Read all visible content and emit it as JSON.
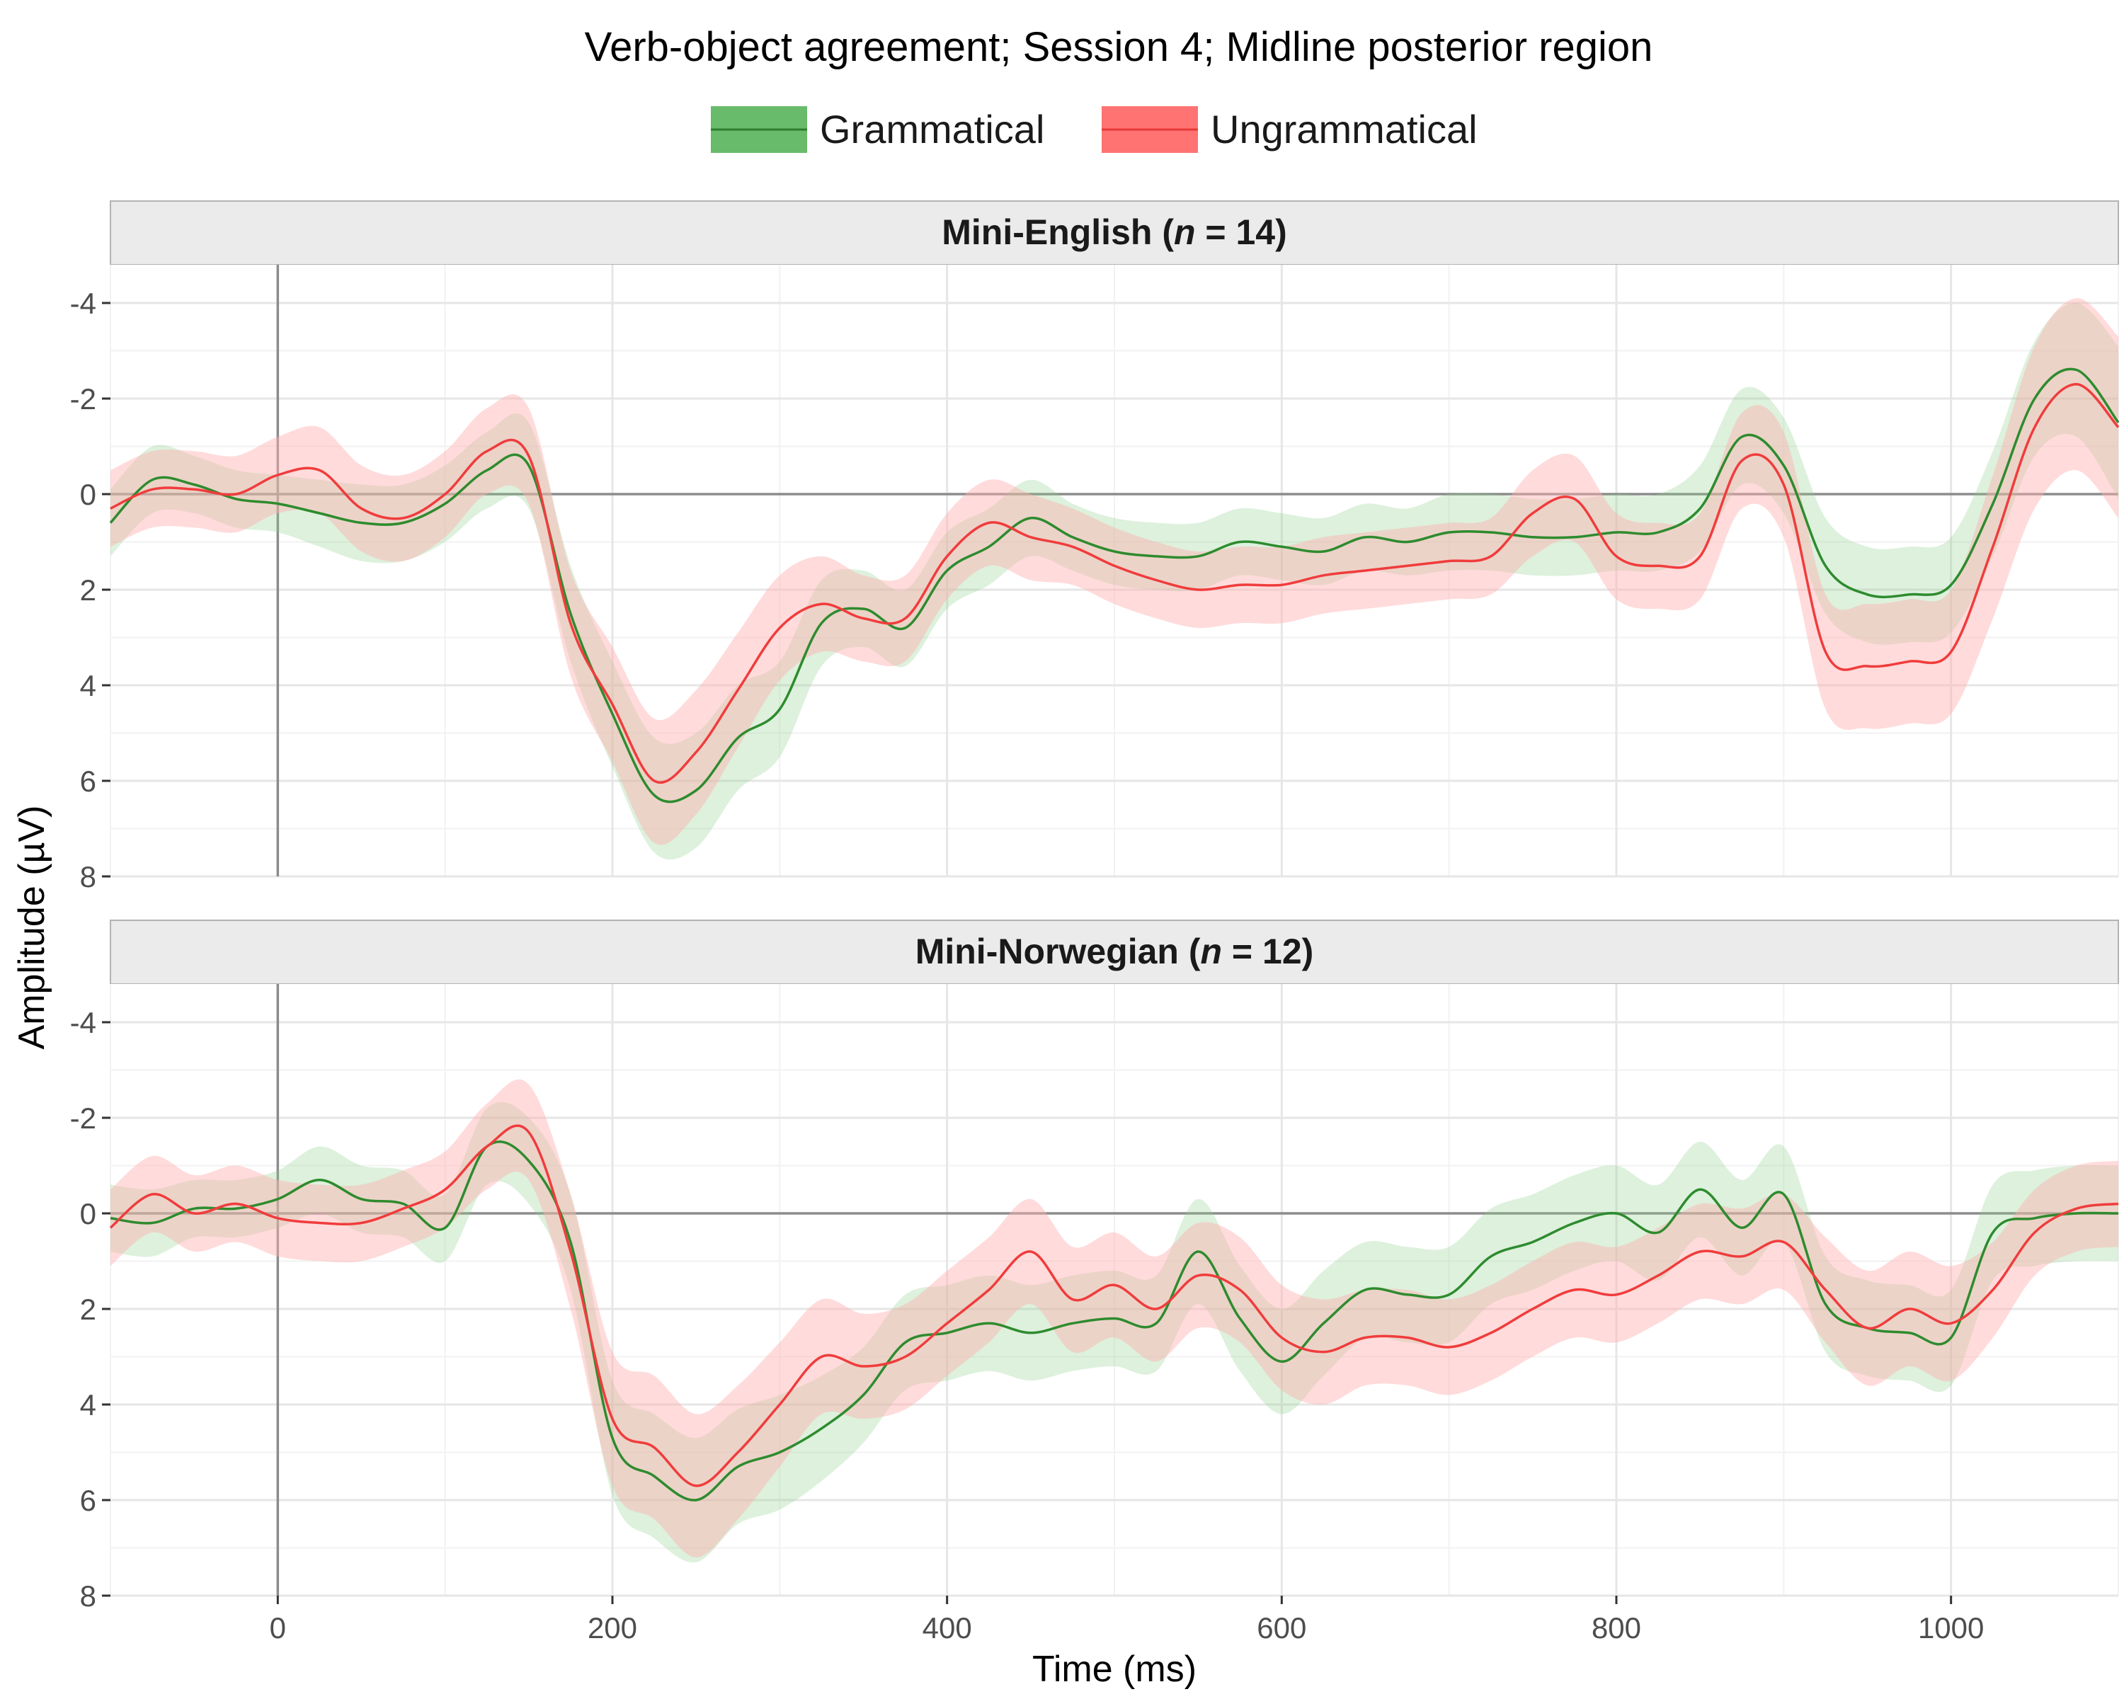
{
  "chart_data": {
    "type": "line",
    "title": "Verb-object agreement; Session 4; Midline posterior region",
    "xlabel": "Time (ms)",
    "ylabel": "Amplitude (µV)",
    "xlim": [
      -100,
      1100
    ],
    "ylim": [
      8,
      -4.8
    ],
    "y_reversed": true,
    "x_ticks": [
      0,
      200,
      400,
      600,
      800,
      1000
    ],
    "x_tick_labels": [
      "0",
      "200",
      "400",
      "600",
      "800",
      "1000"
    ],
    "y_ticks": [
      -4,
      -2,
      0,
      2,
      4,
      6,
      8
    ],
    "y_tick_labels": [
      "-4",
      "-2",
      "0",
      "2",
      "4",
      "6",
      "8"
    ],
    "grid": true,
    "legend": {
      "position": "top",
      "entries": [
        "Grammatical",
        "Ungrammatical"
      ]
    },
    "colors": {
      "Grammatical": "#2e8b2e",
      "Ungrammatical": "#f03c3c",
      "grammatical_band": "#8fd18f",
      "ungrammatical_band": "#ffb0b0"
    },
    "x": [
      -100,
      -75,
      -50,
      -25,
      0,
      25,
      50,
      75,
      100,
      125,
      150,
      175,
      200,
      225,
      250,
      275,
      300,
      325,
      350,
      375,
      400,
      425,
      450,
      475,
      500,
      525,
      550,
      575,
      600,
      625,
      650,
      675,
      700,
      725,
      750,
      775,
      800,
      825,
      850,
      875,
      900,
      925,
      950,
      975,
      1000,
      1025,
      1050,
      1075,
      1100
    ],
    "panels": [
      {
        "strip_prefix": "Mini-English (",
        "strip_n": "n",
        "strip_suffix": " = 14)",
        "series": [
          {
            "name": "Grammatical",
            "values": [
              0.6,
              -0.3,
              -0.2,
              0.1,
              0.2,
              0.4,
              0.6,
              0.6,
              0.2,
              -0.5,
              -0.6,
              2.5,
              4.6,
              6.3,
              6.2,
              5.1,
              4.5,
              2.7,
              2.4,
              2.8,
              1.6,
              1.1,
              0.5,
              0.9,
              1.2,
              1.3,
              1.3,
              1.0,
              1.1,
              1.2,
              0.9,
              1.0,
              0.8,
              0.8,
              0.9,
              0.9,
              0.8,
              0.8,
              0.3,
              -1.2,
              -0.6,
              1.5,
              2.1,
              2.1,
              1.9,
              0.2,
              -2.0,
              -2.6,
              -1.5
            ],
            "band": [
              0.7,
              0.7,
              0.6,
              0.6,
              0.6,
              0.7,
              0.8,
              0.8,
              0.8,
              0.8,
              0.9,
              1.0,
              1.1,
              1.2,
              1.2,
              1.1,
              1.0,
              0.9,
              0.8,
              0.8,
              0.8,
              0.8,
              0.8,
              0.7,
              0.7,
              0.7,
              0.7,
              0.7,
              0.7,
              0.7,
              0.7,
              0.7,
              0.8,
              0.8,
              0.8,
              0.8,
              0.8,
              0.8,
              0.9,
              1.0,
              1.0,
              1.0,
              1.0,
              1.0,
              1.0,
              1.1,
              1.2,
              1.4,
              1.6
            ]
          },
          {
            "name": "Ungrammatical",
            "values": [
              0.3,
              -0.1,
              -0.1,
              0.0,
              -0.4,
              -0.5,
              0.3,
              0.5,
              0.0,
              -0.9,
              -0.8,
              2.7,
              4.4,
              6.0,
              5.4,
              4.1,
              2.8,
              2.3,
              2.6,
              2.6,
              1.3,
              0.6,
              0.9,
              1.1,
              1.5,
              1.8,
              2.0,
              1.9,
              1.9,
              1.7,
              1.6,
              1.5,
              1.4,
              1.3,
              0.4,
              0.1,
              1.3,
              1.5,
              1.3,
              -0.7,
              -0.2,
              3.3,
              3.6,
              3.5,
              3.3,
              1.1,
              -1.4,
              -2.3,
              -1.4
            ],
            "band": [
              0.8,
              0.8,
              0.8,
              0.8,
              0.8,
              0.9,
              0.9,
              0.9,
              0.9,
              0.9,
              1.0,
              1.1,
              1.2,
              1.3,
              1.3,
              1.2,
              1.1,
              1.0,
              0.9,
              0.9,
              0.9,
              0.9,
              0.9,
              0.8,
              0.8,
              0.8,
              0.8,
              0.8,
              0.8,
              0.8,
              0.8,
              0.8,
              0.8,
              0.8,
              0.9,
              0.9,
              0.9,
              0.9,
              0.9,
              1.0,
              1.1,
              1.2,
              1.3,
              1.3,
              1.3,
              1.5,
              1.7,
              1.8,
              1.9
            ]
          }
        ]
      },
      {
        "strip_prefix": "Mini-Norwegian (",
        "strip_n": "n",
        "strip_suffix": " = 12)",
        "series": [
          {
            "name": "Grammatical",
            "values": [
              0.1,
              0.2,
              -0.1,
              -0.1,
              -0.3,
              -0.7,
              -0.3,
              -0.2,
              0.3,
              -1.4,
              -1.1,
              0.6,
              4.7,
              5.5,
              6.0,
              5.3,
              5.0,
              4.5,
              3.8,
              2.7,
              2.5,
              2.3,
              2.5,
              2.3,
              2.2,
              2.3,
              0.8,
              2.2,
              3.1,
              2.3,
              1.6,
              1.7,
              1.7,
              0.9,
              0.6,
              0.2,
              0.0,
              0.4,
              -0.5,
              0.3,
              -0.4,
              1.9,
              2.4,
              2.5,
              2.6,
              0.4,
              0.1,
              0.0,
              0.0
            ],
            "band": [
              0.7,
              0.7,
              0.6,
              0.6,
              0.6,
              0.7,
              0.7,
              0.7,
              0.7,
              0.8,
              0.9,
              1.0,
              1.2,
              1.3,
              1.3,
              1.2,
              1.2,
              1.1,
              1.0,
              1.0,
              1.0,
              1.0,
              1.0,
              1.0,
              1.0,
              1.0,
              1.1,
              1.1,
              1.1,
              1.1,
              1.0,
              1.0,
              1.0,
              1.0,
              1.0,
              1.0,
              1.0,
              1.0,
              1.0,
              1.0,
              1.0,
              1.0,
              1.0,
              1.0,
              1.0,
              1.0,
              1.0,
              1.0,
              1.0
            ]
          },
          {
            "name": "Ungrammatical",
            "values": [
              0.3,
              -0.4,
              0.0,
              -0.2,
              0.1,
              0.2,
              0.2,
              -0.1,
              -0.5,
              -1.4,
              -1.7,
              0.8,
              4.3,
              4.9,
              5.7,
              5.0,
              4.0,
              3.0,
              3.2,
              3.0,
              2.3,
              1.6,
              0.8,
              1.8,
              1.5,
              2.0,
              1.3,
              1.6,
              2.6,
              2.9,
              2.6,
              2.6,
              2.8,
              2.5,
              2.0,
              1.6,
              1.7,
              1.3,
              0.8,
              0.9,
              0.6,
              1.6,
              2.4,
              2.0,
              2.3,
              1.6,
              0.4,
              -0.1,
              -0.2
            ],
            "band": [
              0.8,
              0.8,
              0.8,
              0.8,
              0.8,
              0.8,
              0.8,
              0.8,
              0.8,
              0.9,
              1.0,
              1.2,
              1.4,
              1.5,
              1.5,
              1.4,
              1.3,
              1.2,
              1.1,
              1.1,
              1.1,
              1.1,
              1.1,
              1.1,
              1.1,
              1.1,
              1.1,
              1.1,
              1.1,
              1.1,
              1.0,
              1.0,
              1.0,
              1.0,
              1.0,
              1.0,
              1.0,
              1.0,
              1.0,
              1.0,
              1.0,
              1.1,
              1.2,
              1.2,
              1.2,
              1.0,
              0.9,
              0.9,
              0.9
            ]
          }
        ]
      }
    ]
  }
}
